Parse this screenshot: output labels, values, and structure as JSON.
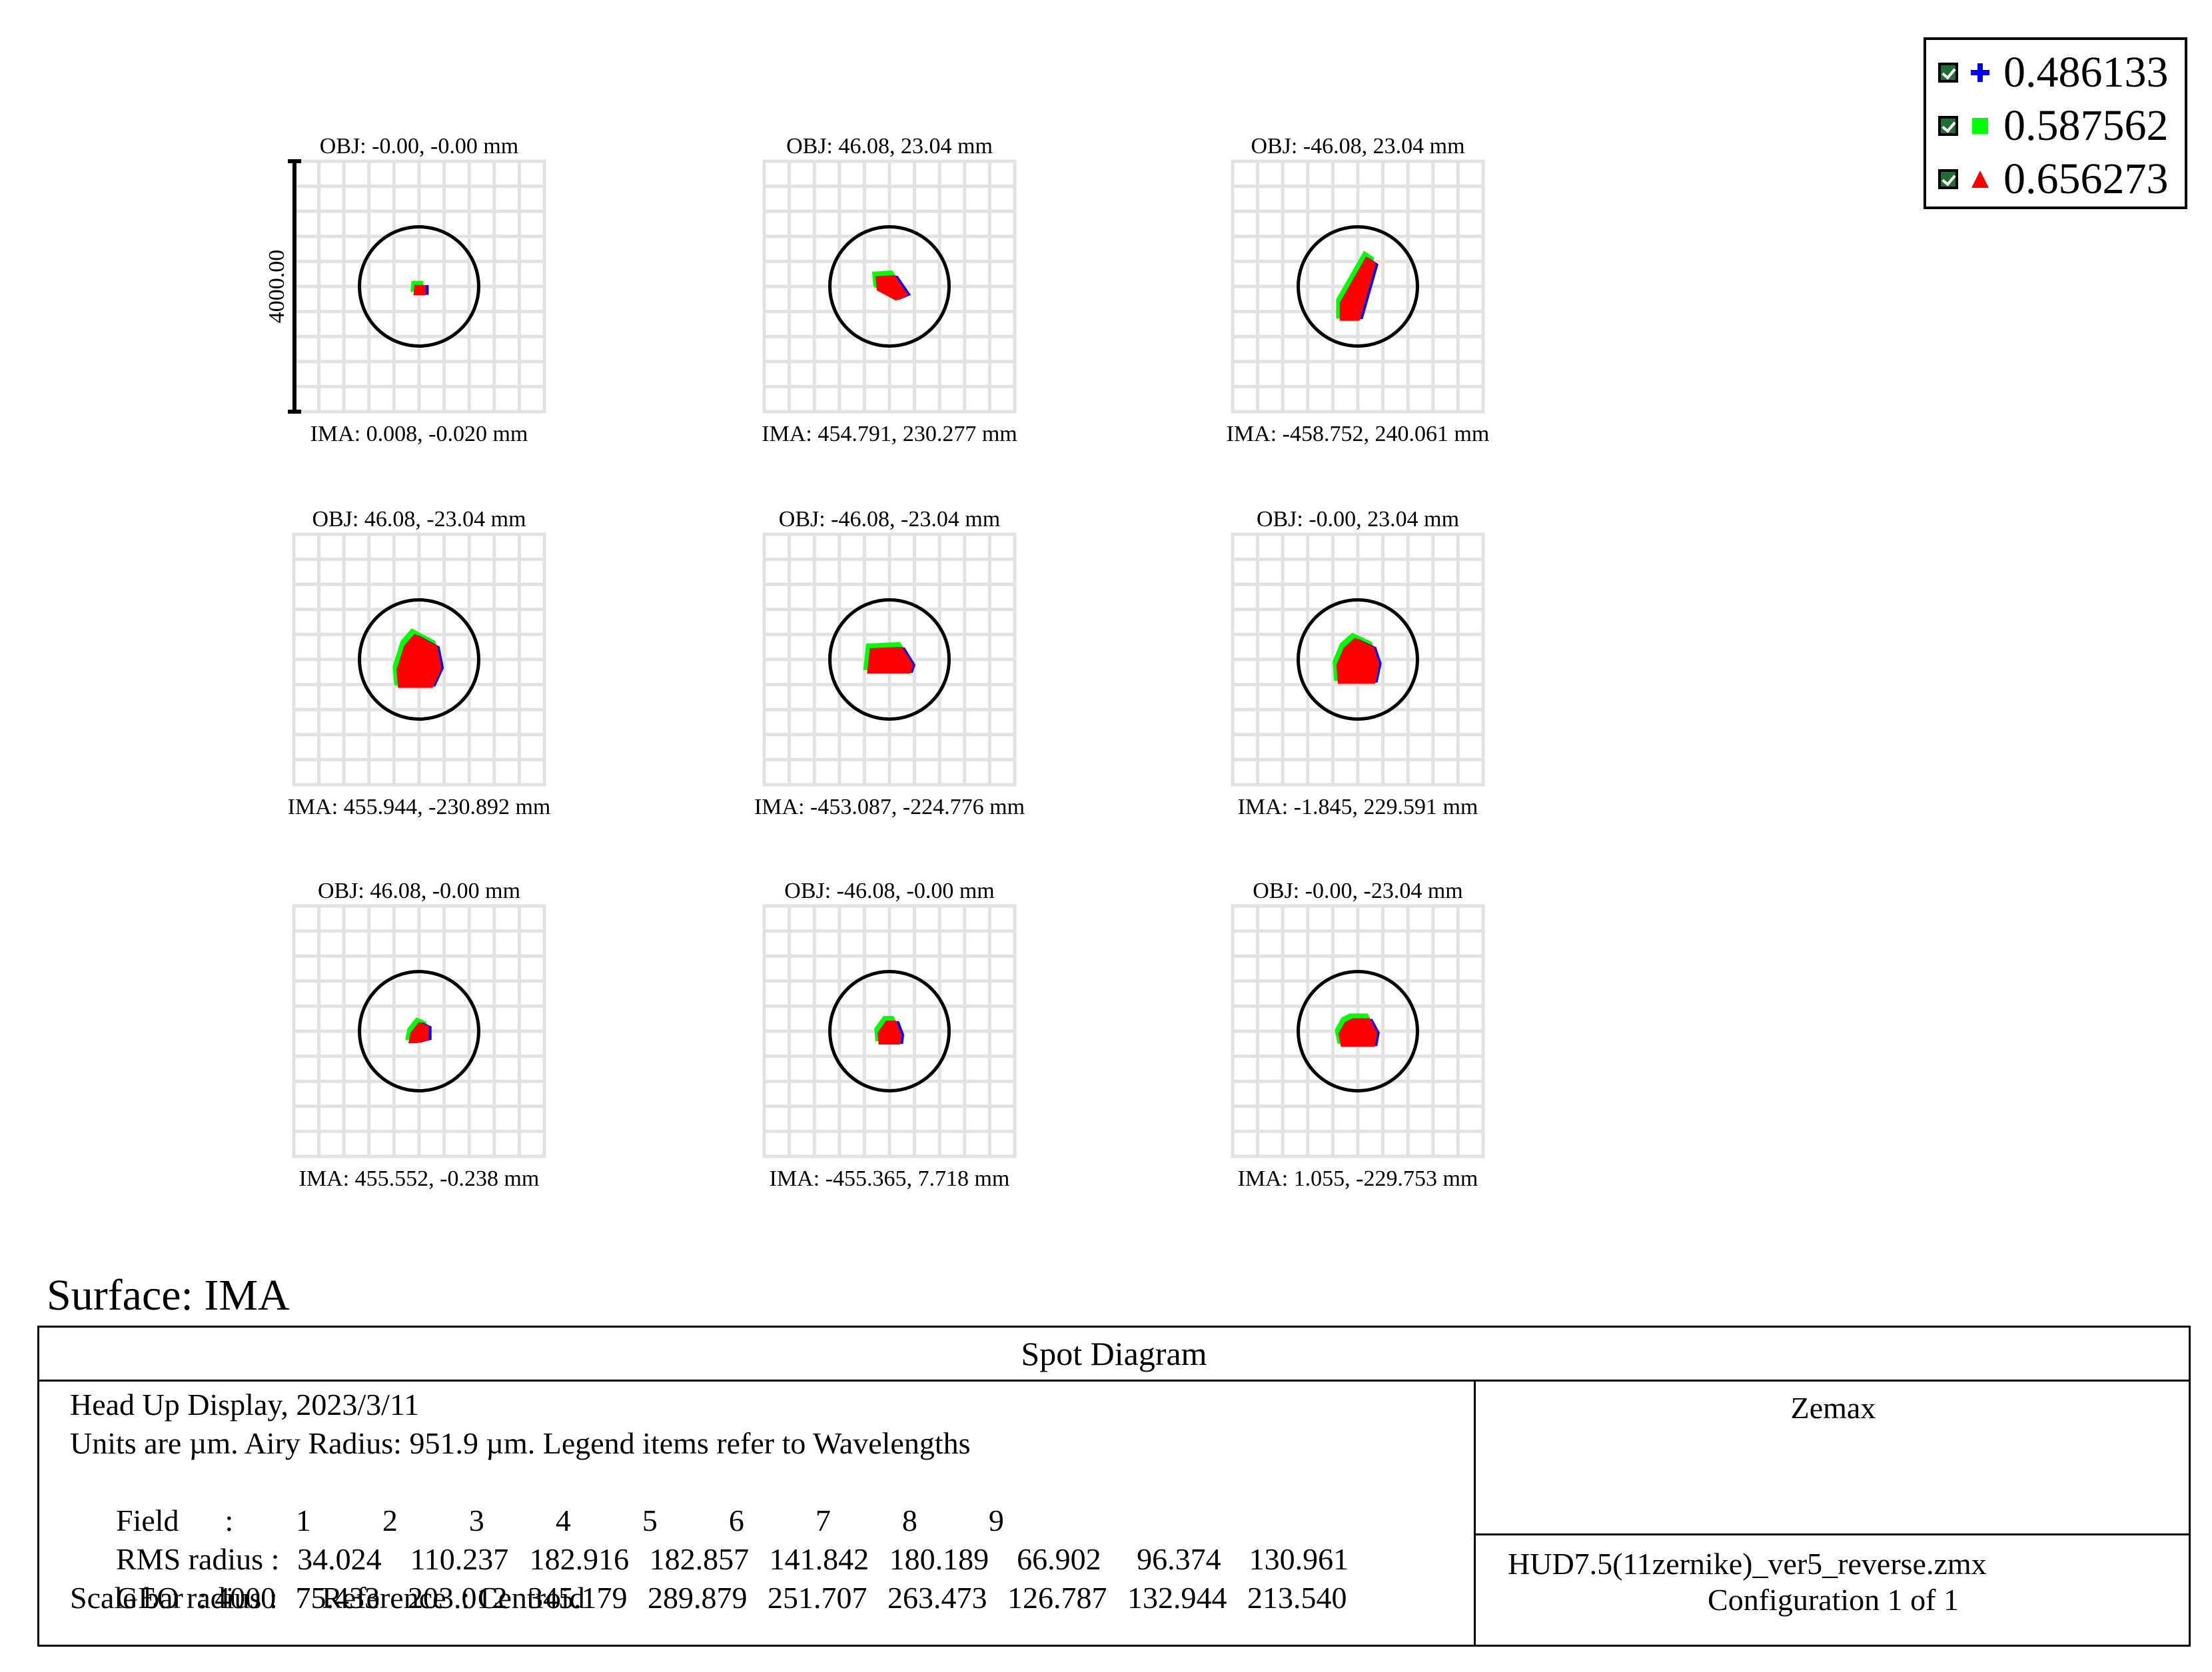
{
  "chart_data": {
    "type": "scatter",
    "title": "Spot Diagram",
    "surface": "Surface: IMA",
    "scale_bar": {
      "label": "4000.00",
      "value": 4000
    },
    "legend": [
      {
        "label": "0.486133",
        "color": "#0000ff",
        "marker": "cross"
      },
      {
        "label": "0.587562",
        "color": "#00ff00",
        "marker": "square"
      },
      {
        "label": "0.656273",
        "color": "#ff0000",
        "marker": "triangle"
      }
    ],
    "airy_radius": 951.9,
    "grid_size_um": 4000,
    "fields": [
      {
        "index": 1,
        "obj": "OBJ: -0.00, -0.00 mm",
        "ima": "IMA: 0.008, -0.020 mm",
        "rms_radius": 34.024,
        "geo_radius": 75.433
      },
      {
        "index": 2,
        "obj": "OBJ: 46.08, 23.04 mm",
        "ima": "IMA: 454.791, 230.277 mm",
        "rms_radius": 110.237,
        "geo_radius": 203.012
      },
      {
        "index": 3,
        "obj": "OBJ: -46.08, 23.04 mm",
        "ima": "IMA: -458.752, 240.061 mm",
        "rms_radius": 182.916,
        "geo_radius": 345.179
      },
      {
        "index": 4,
        "obj": "OBJ: 46.08, -23.04 mm",
        "ima": "IMA: 455.944, -230.892 mm",
        "rms_radius": 182.857,
        "geo_radius": 289.879
      },
      {
        "index": 5,
        "obj": "OBJ: -46.08, -23.04 mm",
        "ima": "IMA: -453.087, -224.776 mm",
        "rms_radius": 141.842,
        "geo_radius": 251.707
      },
      {
        "index": 6,
        "obj": "OBJ: -0.00, 23.04 mm",
        "ima": "IMA: -1.845, 229.591 mm",
        "rms_radius": 180.189,
        "geo_radius": 263.473
      },
      {
        "index": 7,
        "obj": "OBJ: 46.08, -0.00 mm",
        "ima": "IMA: 455.552, -0.238 mm",
        "rms_radius": 66.902,
        "geo_radius": 126.787
      },
      {
        "index": 8,
        "obj": "OBJ: -46.08, -0.00 mm",
        "ima": "IMA: -455.365, 7.718 mm",
        "rms_radius": 96.374,
        "geo_radius": 132.944
      },
      {
        "index": 9,
        "obj": "OBJ: -0.00, -23.04 mm",
        "ima": "IMA: 1.055, -229.753 mm",
        "rms_radius": 130.961,
        "geo_radius": 213.54
      }
    ]
  },
  "info": {
    "title": "Spot Diagram",
    "line1": "Head Up Display, 2023/3/11",
    "line2": "Units are µm. Airy Radius: 951.9 µm. Legend items refer to Wavelengths",
    "field_label": "Field      :",
    "field_values": [
      "1",
      "2",
      "3",
      "4",
      "5",
      "6",
      "7",
      "8",
      "9"
    ],
    "rms_label": "RMS radius :",
    "rms_values": [
      "34.024",
      "110.237",
      "182.916",
      "182.857",
      "141.842",
      "180.189",
      "66.902",
      "96.374",
      "130.961"
    ],
    "geo_label": "GEO radius :",
    "geo_values": [
      "75.433",
      "203.012",
      "345.179",
      "289.879",
      "251.707",
      "263.473",
      "126.787",
      "132.944",
      "213.540"
    ],
    "scale_line": "Scale bar  : 4000      Reference  : Centroid",
    "brand": "Zemax",
    "file": "HUD7.5(11zernike)_ver5_reverse.zmx",
    "config": "Configuration 1 of 1"
  }
}
